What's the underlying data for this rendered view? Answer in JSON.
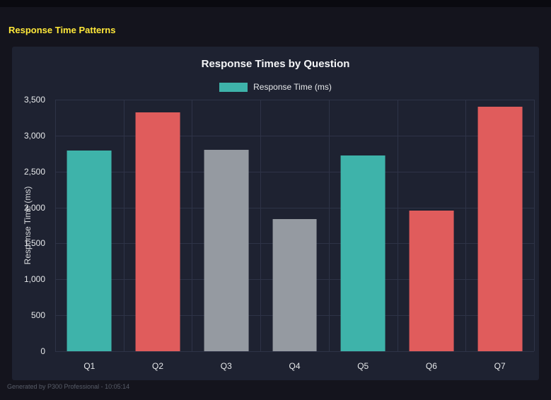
{
  "page": {
    "title": "Response Time Patterns",
    "footer": "Generated by P300 Professional - 10:05:14"
  },
  "chart": {
    "title": "Response Times by Question",
    "legend_label": "Response Time (ms)",
    "y_axis_label": "Response Time (ms)"
  },
  "chart_data": {
    "type": "bar",
    "title": "Response Times by Question",
    "categories": [
      "Q1",
      "Q2",
      "Q3",
      "Q4",
      "Q5",
      "Q6",
      "Q7"
    ],
    "values": [
      2790,
      3320,
      2800,
      1840,
      2720,
      1960,
      3400
    ],
    "bar_colors": [
      "#3eb3aa",
      "#e05c5c",
      "#959aa1",
      "#959aa1",
      "#3eb3aa",
      "#e05c5c",
      "#e05c5c"
    ],
    "legend": [
      {
        "label": "Response Time (ms)",
        "color": "#3eb3aa"
      }
    ],
    "legend_position": "top",
    "xlabel": "",
    "ylabel": "Response Time (ms)",
    "ylim": [
      0,
      3500
    ],
    "y_ticks": [
      0,
      500,
      1000,
      1500,
      2000,
      2500,
      3000,
      3500
    ],
    "y_tick_labels": [
      "0",
      "500",
      "1,000",
      "1,500",
      "2,000",
      "2,500",
      "3,000",
      "3,500"
    ],
    "grid": true
  },
  "colors": {
    "background": "#14141d",
    "panel": "#1e2231",
    "gridline": "#2e3347",
    "accent_yellow": "#ffe83a",
    "teal": "#3eb3aa",
    "red": "#e05c5c",
    "gray": "#959aa1"
  }
}
